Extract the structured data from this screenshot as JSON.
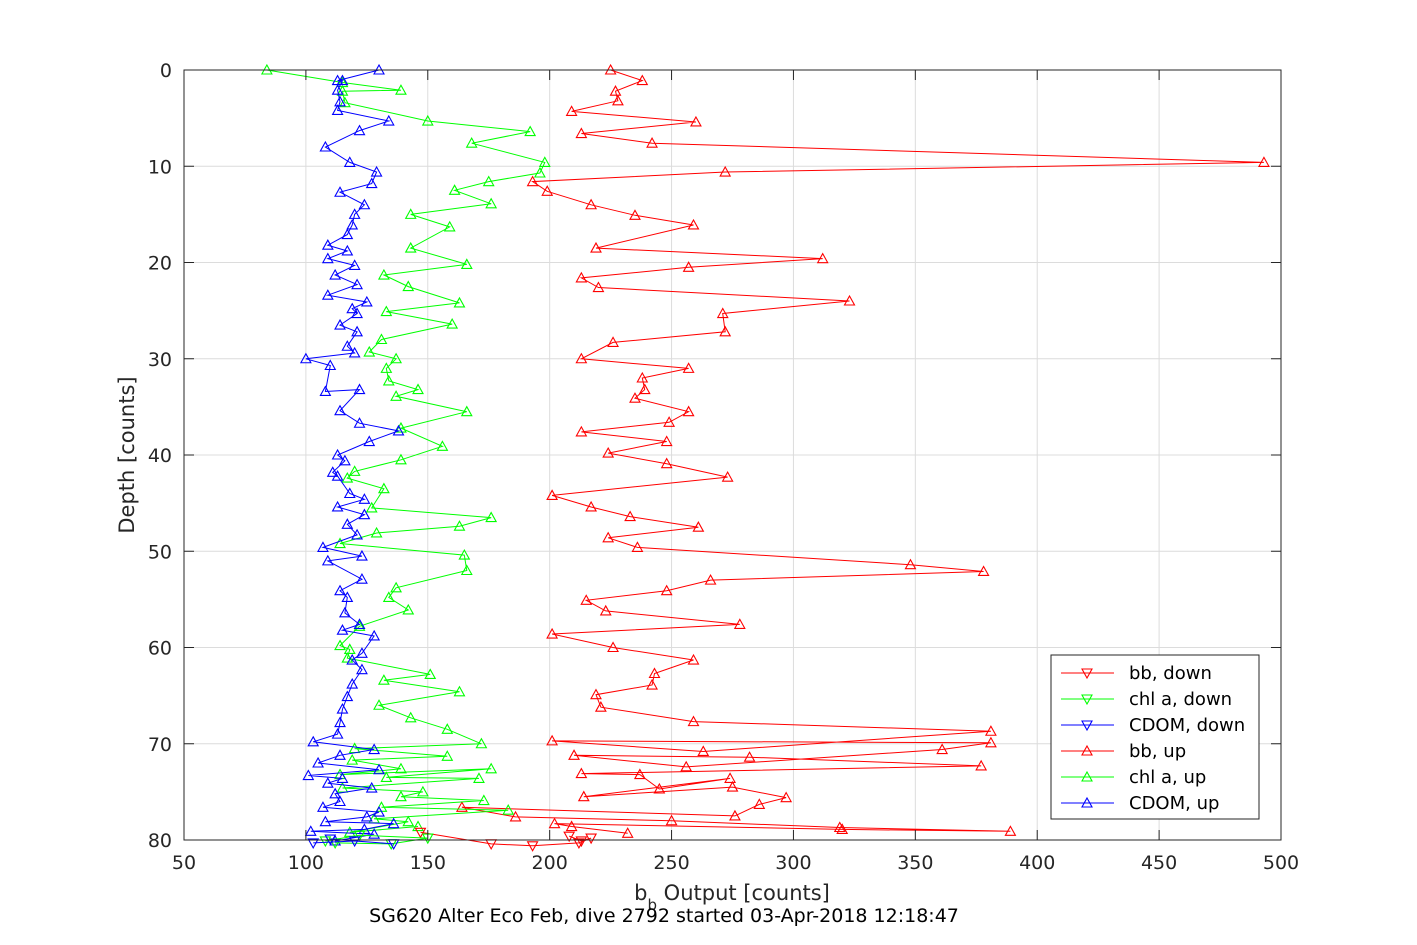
{
  "chart_data": {
    "type": "line",
    "xlabel_main": "b",
    "xlabel_sub": "b",
    "xlabel_rest": " Output [counts]",
    "ylabel": "Depth [counts]",
    "caption": "SG620 Alter Eco Feb, dive 2792 started 03-Apr-2018 12:18:47",
    "xlim": [
      50,
      500
    ],
    "ylim": [
      0,
      80
    ],
    "y_reversed": true,
    "grid": true,
    "legend_position": "bottom-right",
    "xticks": [
      "50",
      "100",
      "150",
      "200",
      "250",
      "300",
      "350",
      "400",
      "450",
      "500"
    ],
    "yticks": [
      "0",
      "10",
      "20",
      "30",
      "40",
      "50",
      "60",
      "70",
      "80"
    ],
    "series": [
      {
        "name": "bb, down",
        "color": "#ff0000",
        "marker": "triangle-down",
        "points": [
          [
            147,
            79.2
          ],
          [
            176,
            80.4
          ],
          [
            193,
            80.6
          ],
          [
            212,
            80.3
          ],
          [
            217,
            79.8
          ],
          [
            213,
            80.1
          ],
          [
            208,
            79.6
          ]
        ]
      },
      {
        "name": "chl a, down",
        "color": "#00ff00",
        "marker": "triangle-down",
        "points": [
          [
            108,
            80.1
          ],
          [
            122,
            79.5
          ],
          [
            150,
            79.8
          ],
          [
            135,
            80.4
          ],
          [
            112,
            80.3
          ]
        ]
      },
      {
        "name": "CDOM, down",
        "color": "#0000ff",
        "marker": "triangle-down",
        "points": [
          [
            103,
            80.3
          ],
          [
            120,
            80.1
          ],
          [
            136,
            80.4
          ],
          [
            110,
            79.9
          ]
        ]
      },
      {
        "name": "bb, up",
        "color": "#ff0000",
        "marker": "triangle-up",
        "points": [
          [
            232,
            79.3
          ],
          [
            209,
            78.6
          ],
          [
            202,
            78.3
          ],
          [
            320,
            78.9
          ],
          [
            389,
            79.1
          ],
          [
            319,
            78.7
          ],
          [
            250,
            78.0
          ],
          [
            186,
            77.6
          ],
          [
            164,
            76.6
          ],
          [
            276,
            77.5
          ],
          [
            286,
            76.3
          ],
          [
            297,
            75.6
          ],
          [
            275,
            74.5
          ],
          [
            214,
            75.5
          ],
          [
            274,
            73.6
          ],
          [
            245,
            74.7
          ],
          [
            237,
            73.2
          ],
          [
            213,
            73.1
          ],
          [
            377,
            72.3
          ],
          [
            282,
            71.4
          ],
          [
            210,
            71.2
          ],
          [
            256,
            72.4
          ],
          [
            361,
            70.6
          ],
          [
            381,
            69.9
          ],
          [
            201,
            69.7
          ],
          [
            263,
            70.8
          ],
          [
            381,
            68.7
          ],
          [
            259,
            67.7
          ],
          [
            221,
            66.2
          ],
          [
            219,
            64.9
          ],
          [
            242,
            63.9
          ],
          [
            243,
            62.7
          ],
          [
            259,
            61.3
          ],
          [
            226,
            60.0
          ],
          [
            201,
            58.6
          ],
          [
            278,
            57.6
          ],
          [
            223,
            56.2
          ],
          [
            215,
            55.1
          ],
          [
            248,
            54.1
          ],
          [
            266,
            53.0
          ],
          [
            378,
            52.1
          ],
          [
            348,
            51.4
          ],
          [
            236,
            49.6
          ],
          [
            224,
            48.6
          ],
          [
            261,
            47.5
          ],
          [
            233,
            46.4
          ],
          [
            217,
            45.4
          ],
          [
            201,
            44.2
          ],
          [
            273,
            42.3
          ],
          [
            248,
            40.9
          ],
          [
            224,
            39.8
          ],
          [
            248,
            38.6
          ],
          [
            213,
            37.6
          ],
          [
            249,
            36.6
          ],
          [
            257,
            35.5
          ],
          [
            235,
            34.1
          ],
          [
            239,
            33.2
          ],
          [
            238,
            32.0
          ],
          [
            257,
            31.0
          ],
          [
            213,
            30.0
          ],
          [
            226,
            28.3
          ],
          [
            272,
            27.2
          ],
          [
            271,
            25.3
          ],
          [
            323,
            24.0
          ],
          [
            220,
            22.6
          ],
          [
            213,
            21.6
          ],
          [
            257,
            20.5
          ],
          [
            312,
            19.6
          ],
          [
            219,
            18.5
          ],
          [
            259,
            16.1
          ],
          [
            235,
            15.1
          ],
          [
            217,
            14.0
          ],
          [
            199,
            12.6
          ],
          [
            193,
            11.6
          ],
          [
            272,
            10.6
          ],
          [
            493,
            9.6
          ],
          [
            242,
            7.6
          ],
          [
            213,
            6.6
          ],
          [
            260,
            5.4
          ],
          [
            209,
            4.3
          ],
          [
            228,
            3.2
          ],
          [
            227,
            2.2
          ],
          [
            238,
            1.1
          ],
          [
            225,
            0.0
          ]
        ]
      },
      {
        "name": "chl a, up",
        "color": "#00ff00",
        "marker": "triangle-up",
        "points": [
          [
            146,
            78.6
          ],
          [
            118,
            79.2
          ],
          [
            142,
            78.1
          ],
          [
            128,
            77.8
          ],
          [
            183,
            76.9
          ],
          [
            131,
            76.6
          ],
          [
            173,
            75.9
          ],
          [
            139,
            75.5
          ],
          [
            148,
            75.0
          ],
          [
            115,
            74.6
          ],
          [
            171,
            73.6
          ],
          [
            133,
            73.5
          ],
          [
            176,
            72.6
          ],
          [
            114,
            73.2
          ],
          [
            139,
            72.6
          ],
          [
            119,
            71.7
          ],
          [
            158,
            71.3
          ],
          [
            120,
            70.5
          ],
          [
            172,
            70.0
          ],
          [
            158,
            68.5
          ],
          [
            143,
            67.3
          ],
          [
            130,
            66.0
          ],
          [
            163,
            64.6
          ],
          [
            132,
            63.4
          ],
          [
            151,
            62.8
          ],
          [
            117,
            61.1
          ],
          [
            118,
            60.2
          ],
          [
            114,
            59.8
          ],
          [
            122,
            57.8
          ],
          [
            142,
            56.1
          ],
          [
            134,
            54.8
          ],
          [
            137,
            53.8
          ],
          [
            166,
            52.0
          ],
          [
            165,
            50.4
          ],
          [
            114,
            49.2
          ],
          [
            129,
            48.1
          ],
          [
            163,
            47.4
          ],
          [
            176,
            46.5
          ],
          [
            127,
            45.5
          ],
          [
            132,
            43.5
          ],
          [
            117,
            42.4
          ],
          [
            120,
            41.7
          ],
          [
            139,
            40.5
          ],
          [
            156,
            39.1
          ],
          [
            139,
            37.2
          ],
          [
            166,
            35.5
          ],
          [
            137,
            33.9
          ],
          [
            146,
            33.2
          ],
          [
            134,
            32.3
          ],
          [
            133,
            31.0
          ],
          [
            137,
            30.0
          ],
          [
            126,
            29.3
          ],
          [
            131,
            28.0
          ],
          [
            160,
            26.4
          ],
          [
            133,
            25.1
          ],
          [
            163,
            24.2
          ],
          [
            142,
            22.5
          ],
          [
            132,
            21.3
          ],
          [
            166,
            20.2
          ],
          [
            143,
            18.5
          ],
          [
            159,
            16.3
          ],
          [
            143,
            15.0
          ],
          [
            176,
            13.9
          ],
          [
            161,
            12.5
          ],
          [
            175,
            11.6
          ],
          [
            196,
            10.7
          ],
          [
            198,
            9.6
          ],
          [
            168,
            7.6
          ],
          [
            192,
            6.4
          ],
          [
            150,
            5.3
          ],
          [
            116,
            3.4
          ],
          [
            115,
            2.2
          ],
          [
            139,
            2.1
          ],
          [
            115,
            1.3
          ],
          [
            84,
            0.0
          ]
        ]
      },
      {
        "name": "CDOM, up",
        "color": "#0000ff",
        "marker": "triangle-up",
        "points": [
          [
            112,
            80.1
          ],
          [
            128,
            79.4
          ],
          [
            102,
            79.1
          ],
          [
            124,
            78.9
          ],
          [
            136,
            78.3
          ],
          [
            108,
            78.1
          ],
          [
            125,
            77.6
          ],
          [
            130,
            77.1
          ],
          [
            107,
            76.6
          ],
          [
            114,
            76.0
          ],
          [
            112,
            75.2
          ],
          [
            127,
            74.6
          ],
          [
            109,
            74.1
          ],
          [
            115,
            73.6
          ],
          [
            101,
            73.3
          ],
          [
            130,
            72.7
          ],
          [
            105,
            72.0
          ],
          [
            114,
            71.2
          ],
          [
            128,
            70.6
          ],
          [
            103,
            69.8
          ],
          [
            113,
            69.0
          ],
          [
            114,
            67.8
          ],
          [
            115,
            66.4
          ],
          [
            117,
            65.1
          ],
          [
            119,
            63.8
          ],
          [
            123,
            62.3
          ],
          [
            119,
            61.3
          ],
          [
            123,
            60.6
          ],
          [
            128,
            58.8
          ],
          [
            115,
            58.2
          ],
          [
            122,
            57.6
          ],
          [
            116,
            56.4
          ],
          [
            117,
            54.8
          ],
          [
            114,
            54.1
          ],
          [
            123,
            52.9
          ],
          [
            109,
            51.0
          ],
          [
            123,
            50.5
          ],
          [
            107,
            49.6
          ],
          [
            121,
            48.3
          ],
          [
            117,
            47.2
          ],
          [
            124,
            46.2
          ],
          [
            113,
            45.4
          ],
          [
            124,
            44.6
          ],
          [
            118,
            44.0
          ],
          [
            113,
            42.2
          ],
          [
            111,
            41.8
          ],
          [
            116,
            40.6
          ],
          [
            113,
            40.0
          ],
          [
            126,
            38.6
          ],
          [
            138,
            37.5
          ],
          [
            122,
            36.7
          ],
          [
            114,
            35.4
          ],
          [
            122,
            33.2
          ],
          [
            108,
            33.4
          ],
          [
            110,
            30.7
          ],
          [
            100,
            30.0
          ],
          [
            120,
            29.4
          ],
          [
            117,
            28.7
          ],
          [
            121,
            27.2
          ],
          [
            114,
            26.5
          ],
          [
            121,
            25.3
          ],
          [
            119,
            24.8
          ],
          [
            125,
            24.1
          ],
          [
            109,
            23.4
          ],
          [
            121,
            22.3
          ],
          [
            112,
            21.3
          ],
          [
            120,
            20.3
          ],
          [
            109,
            19.6
          ],
          [
            117,
            18.8
          ],
          [
            109,
            18.2
          ],
          [
            117,
            17.1
          ],
          [
            119,
            16.1
          ],
          [
            120,
            15.0
          ],
          [
            124,
            14.0
          ],
          [
            114,
            12.7
          ],
          [
            127,
            11.8
          ],
          [
            129,
            10.6
          ],
          [
            118,
            9.6
          ],
          [
            108,
            8.0
          ],
          [
            122,
            6.3
          ],
          [
            134,
            5.3
          ],
          [
            113,
            4.2
          ],
          [
            114,
            3.3
          ],
          [
            113,
            2.1
          ],
          [
            115,
            1.1
          ],
          [
            113,
            1.1
          ],
          [
            130,
            0.0
          ]
        ]
      }
    ]
  }
}
